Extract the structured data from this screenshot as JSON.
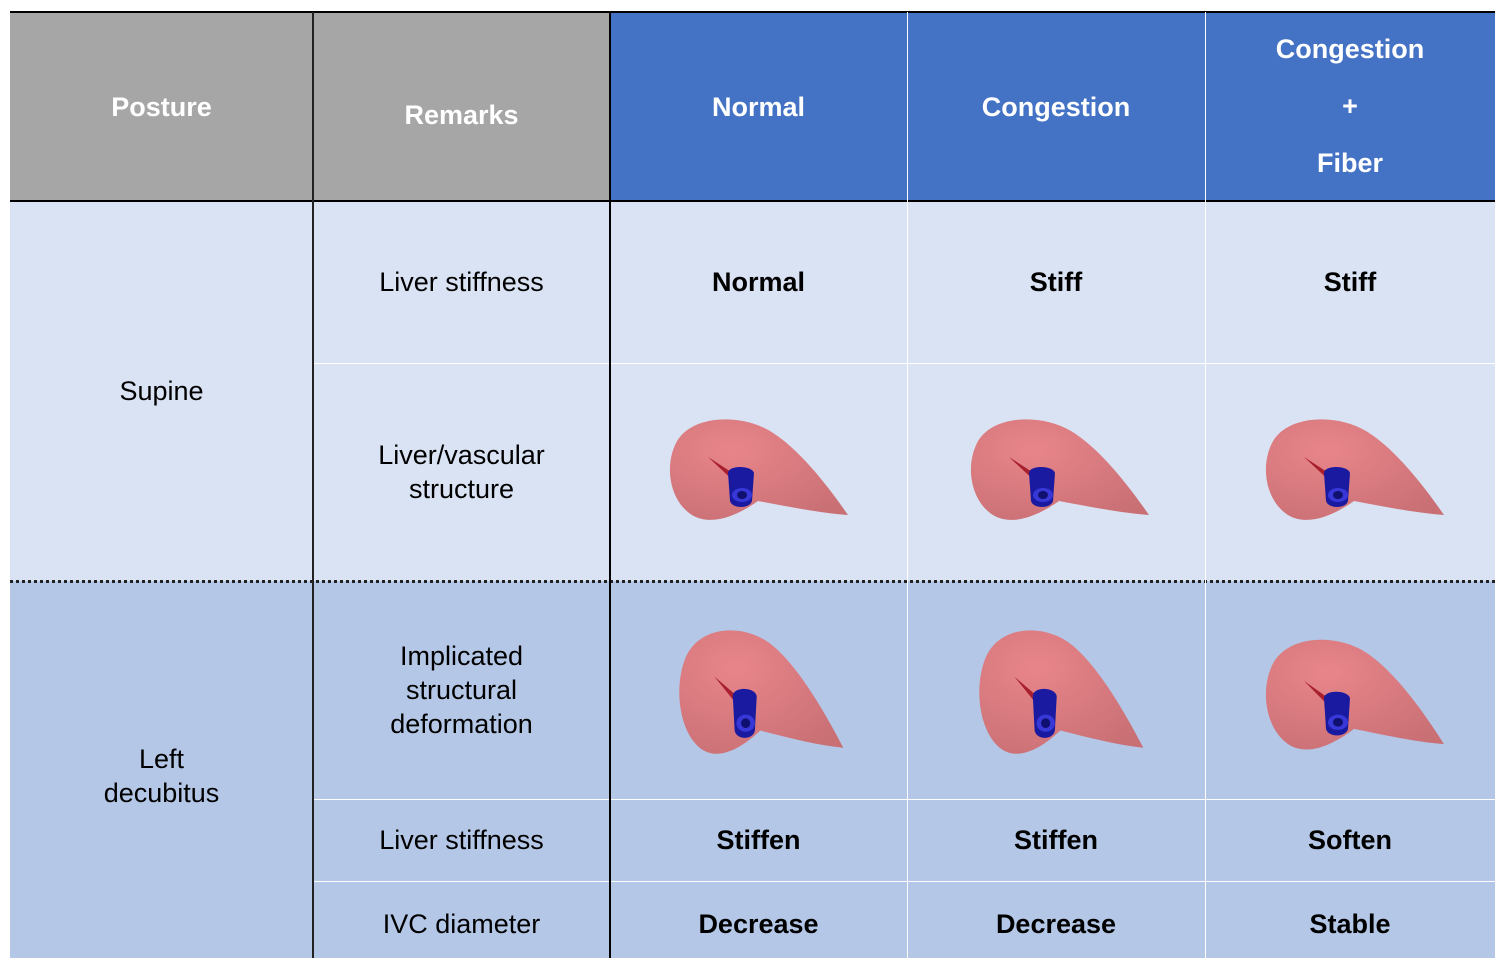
{
  "table": {
    "columns": [
      "Posture",
      "Remarks",
      "Normal",
      "Congestion",
      [
        "Congestion",
        "+",
        "Fiber"
      ]
    ],
    "groups": [
      {
        "posture": "Supine",
        "rows": [
          {
            "remark": [
              "Liver stiffness"
            ],
            "values": [
              "Normal",
              "Stiff",
              "Stiff"
            ]
          },
          {
            "remark": [
              "Liver/vascular",
              "structure"
            ]
          }
        ]
      },
      {
        "posture": [
          "Left",
          "decubitus"
        ],
        "rows": [
          {
            "remark": [
              "Implicated",
              "structural",
              "deformation"
            ]
          },
          {
            "remark": [
              "Liver stiffness"
            ],
            "values": [
              "Stiffen",
              "Stiffen",
              "Soften"
            ]
          },
          {
            "remark": [
              "IVC diameter"
            ],
            "values": [
              "Decrease",
              "Decrease",
              "Stable"
            ]
          }
        ]
      }
    ]
  }
}
